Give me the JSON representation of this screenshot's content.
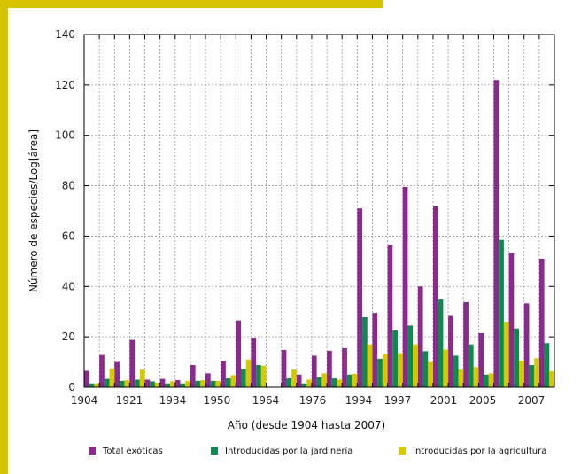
{
  "colors": {
    "frame": "#d6c400",
    "total": "#8b2a8e",
    "jardineria": "#0e8a4f",
    "agricultura": "#d8c800",
    "grid": "#9a9a9a"
  },
  "chart_data": {
    "type": "bar",
    "xlabel": "Año (desde 1904 hasta 2007)",
    "ylabel": "Número de especies/Log[área]",
    "ylim": [
      0,
      140
    ],
    "yticks": [
      "0",
      "20",
      "40",
      "60",
      "80",
      "100",
      "120",
      "140"
    ],
    "xtick_labels": [
      "1904",
      "1921",
      "1934",
      "1950",
      "1964",
      "1976",
      "1994",
      "1997",
      "2001",
      "2005",
      "2007"
    ],
    "grid": true,
    "legend_position": "bottom",
    "series": [
      {
        "name": "Total exóticas",
        "values": [
          6.5,
          12.8,
          10,
          18.8,
          3,
          3.3,
          2.8,
          8.8,
          5.5,
          10.3,
          26.5,
          19.5,
          0,
          14.8,
          5,
          12.5,
          14.5,
          15.5,
          71,
          29.5,
          56.5,
          79.5,
          40,
          71.8,
          28.3,
          33.8,
          21.5,
          122,
          53.3,
          33.3,
          51
        ]
      },
      {
        "name": "Introducidas por la jardinería",
        "values": [
          1.5,
          3.3,
          2.5,
          3,
          2.3,
          1.5,
          1.5,
          2.5,
          2.5,
          3.5,
          7.3,
          8.8,
          0,
          3.5,
          1.5,
          4,
          3.5,
          5,
          27.8,
          11.3,
          22.5,
          24.5,
          14.3,
          34.8,
          12.5,
          17,
          5,
          58.5,
          23.3,
          8.8,
          17.5
        ]
      },
      {
        "name": "Introducidas por la agricultura",
        "values": [
          1.5,
          7.5,
          2.8,
          7,
          1.8,
          2.3,
          2.5,
          2.8,
          2.5,
          4.8,
          11,
          8.5,
          0,
          7,
          3,
          5.5,
          3,
          5.3,
          17,
          13,
          13.5,
          17,
          10,
          15,
          7,
          8,
          5.5,
          25.8,
          10.5,
          11.5,
          6.3
        ]
      }
    ]
  }
}
